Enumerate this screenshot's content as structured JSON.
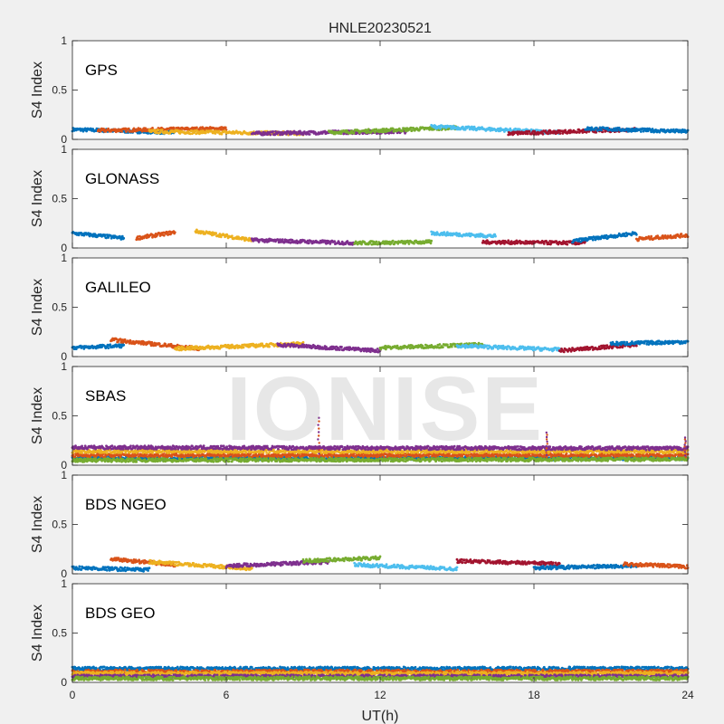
{
  "chart_data": {
    "type": "scatter",
    "title": "HNLE20230521",
    "xlabel": "UT(h)",
    "ylabel": "S4 Index",
    "xlim": [
      0,
      24
    ],
    "ylim": [
      0,
      1
    ],
    "x_ticks": [
      "0",
      "6",
      "12",
      "18",
      "24"
    ],
    "y_ticks": [
      "0",
      "0.5",
      "1"
    ],
    "watermark": "IONISE",
    "series_colors": [
      "#0072BD",
      "#D95319",
      "#EDB120",
      "#7E2F8E",
      "#77AC30",
      "#4DBEEE",
      "#A2142F"
    ],
    "panels": [
      {
        "label": "GPS",
        "typical_s4": 0.07,
        "segments": [
          {
            "x": [
              0,
              4
            ],
            "y": [
              0.1,
              0.07
            ]
          },
          {
            "x": [
              1,
              6
            ],
            "y": [
              0.09,
              0.11
            ]
          },
          {
            "x": [
              3,
              9
            ],
            "y": [
              0.08,
              0.06
            ]
          },
          {
            "x": [
              7,
              13
            ],
            "y": [
              0.06,
              0.08
            ]
          },
          {
            "x": [
              10,
              15
            ],
            "y": [
              0.07,
              0.12
            ]
          },
          {
            "x": [
              14,
              19
            ],
            "y": [
              0.13,
              0.07
            ]
          },
          {
            "x": [
              17,
              22
            ],
            "y": [
              0.06,
              0.1
            ]
          },
          {
            "x": [
              20,
              24
            ],
            "y": [
              0.11,
              0.08
            ]
          }
        ]
      },
      {
        "label": "GLONASS",
        "typical_s4": 0.05,
        "segments": [
          {
            "x": [
              0,
              2
            ],
            "y": [
              0.15,
              0.1
            ]
          },
          {
            "x": [
              2.5,
              4
            ],
            "y": [
              0.1,
              0.16
            ]
          },
          {
            "x": [
              4.8,
              7
            ],
            "y": [
              0.17,
              0.08
            ]
          },
          {
            "x": [
              7,
              11
            ],
            "y": [
              0.08,
              0.05
            ]
          },
          {
            "x": [
              11,
              14
            ],
            "y": [
              0.05,
              0.06
            ]
          },
          {
            "x": [
              14,
              16.5
            ],
            "y": [
              0.15,
              0.12
            ]
          },
          {
            "x": [
              16,
              20
            ],
            "y": [
              0.06,
              0.05
            ]
          },
          {
            "x": [
              19.5,
              22
            ],
            "y": [
              0.07,
              0.15
            ]
          },
          {
            "x": [
              22,
              24
            ],
            "y": [
              0.09,
              0.13
            ]
          }
        ]
      },
      {
        "label": "GALILEO",
        "typical_s4": 0.08,
        "segments": [
          {
            "x": [
              0,
              2
            ],
            "y": [
              0.09,
              0.11
            ]
          },
          {
            "x": [
              1.5,
              5
            ],
            "y": [
              0.17,
              0.08
            ]
          },
          {
            "x": [
              4,
              9
            ],
            "y": [
              0.08,
              0.13
            ]
          },
          {
            "x": [
              8,
              12
            ],
            "y": [
              0.12,
              0.06
            ]
          },
          {
            "x": [
              12,
              16
            ],
            "y": [
              0.09,
              0.12
            ]
          },
          {
            "x": [
              15,
              19
            ],
            "y": [
              0.11,
              0.07
            ]
          },
          {
            "x": [
              19,
              22
            ],
            "y": [
              0.06,
              0.12
            ]
          },
          {
            "x": [
              21,
              24
            ],
            "y": [
              0.13,
              0.15
            ]
          }
        ]
      },
      {
        "label": "SBAS",
        "typical_s4": 0.11,
        "segments": [
          {
            "x": [
              0,
              24
            ],
            "y": [
              0.07,
              0.07
            ]
          },
          {
            "x": [
              0,
              24
            ],
            "y": [
              0.1,
              0.1
            ]
          },
          {
            "x": [
              0,
              24
            ],
            "y": [
              0.14,
              0.14
            ]
          },
          {
            "x": [
              0,
              24
            ],
            "y": [
              0.18,
              0.17
            ]
          },
          {
            "x": [
              0,
              24
            ],
            "y": [
              0.05,
              0.06
            ]
          }
        ],
        "spikes": [
          {
            "x": 9.6,
            "y": 0.48
          },
          {
            "x": 18.5,
            "y": 0.33
          },
          {
            "x": 23.9,
            "y": 0.28
          }
        ]
      },
      {
        "label": "BDS NGEO",
        "typical_s4": 0.07,
        "segments": [
          {
            "x": [
              0,
              3
            ],
            "y": [
              0.06,
              0.04
            ]
          },
          {
            "x": [
              1.5,
              4
            ],
            "y": [
              0.15,
              0.09
            ]
          },
          {
            "x": [
              3,
              7
            ],
            "y": [
              0.12,
              0.05
            ]
          },
          {
            "x": [
              6,
              10
            ],
            "y": [
              0.08,
              0.12
            ]
          },
          {
            "x": [
              9,
              12
            ],
            "y": [
              0.13,
              0.16
            ]
          },
          {
            "x": [
              11,
              15
            ],
            "y": [
              0.09,
              0.05
            ]
          },
          {
            "x": [
              15,
              19
            ],
            "y": [
              0.13,
              0.1
            ]
          },
          {
            "x": [
              18,
              22
            ],
            "y": [
              0.06,
              0.08
            ]
          },
          {
            "x": [
              21.5,
              24
            ],
            "y": [
              0.1,
              0.07
            ]
          }
        ]
      },
      {
        "label": "BDS GEO",
        "typical_s4": 0.08,
        "segments": [
          {
            "x": [
              0,
              24
            ],
            "y": [
              0.14,
              0.14
            ]
          },
          {
            "x": [
              0,
              24
            ],
            "y": [
              0.11,
              0.11
            ]
          },
          {
            "x": [
              0,
              24
            ],
            "y": [
              0.09,
              0.09
            ]
          },
          {
            "x": [
              0,
              24
            ],
            "y": [
              0.06,
              0.06
            ]
          },
          {
            "x": [
              0,
              24
            ],
            "y": [
              0.04,
              0.04
            ]
          }
        ]
      }
    ]
  }
}
